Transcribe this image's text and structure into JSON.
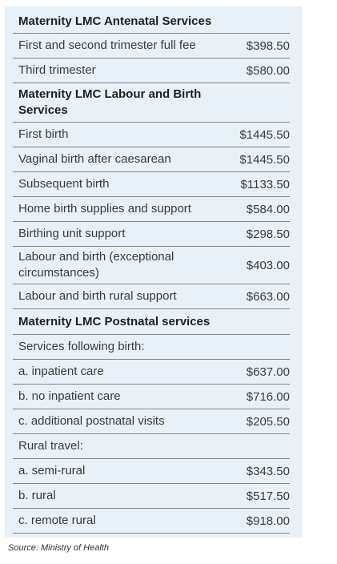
{
  "sections": [
    {
      "title": "Maternity LMC Antenatal Services",
      "rows": [
        {
          "label": "First and second trimester full fee",
          "value": "$398.50"
        },
        {
          "label": "Third trimester",
          "value": "$580.00"
        }
      ]
    },
    {
      "title": "Maternity LMC Labour and Birth Services",
      "rows": [
        {
          "label": "First birth",
          "value": "$1445.50"
        },
        {
          "label": "Vaginal birth after caesarean",
          "value": "$1445.50"
        },
        {
          "label": "Subsequent birth",
          "value": "$1133.50"
        },
        {
          "label": "Home birth supplies and support",
          "value": "$584.00"
        },
        {
          "label": "Birthing unit support",
          "value": "$298.50"
        },
        {
          "label": "Labour and birth (exceptional circumstances)",
          "value": "$403.00"
        },
        {
          "label": "Labour and birth rural support",
          "value": "$663.00"
        }
      ]
    },
    {
      "title": "Maternity LMC Postnatal services",
      "rows": [
        {
          "label": "Services following birth:",
          "value": ""
        },
        {
          "label": "a. inpatient care",
          "value": "$637.00"
        },
        {
          "label": "b. no inpatient care",
          "value": "$716.00"
        },
        {
          "label": "c. additional postnatal visits",
          "value": "$205.50"
        },
        {
          "label": "Rural travel:",
          "value": ""
        },
        {
          "label": "a. semi-rural",
          "value": "$343.50"
        },
        {
          "label": "b. rural",
          "value": "$517.50"
        },
        {
          "label": "c. remote rural",
          "value": "$918.00"
        }
      ]
    }
  ],
  "source": "Source: Ministry of Health"
}
